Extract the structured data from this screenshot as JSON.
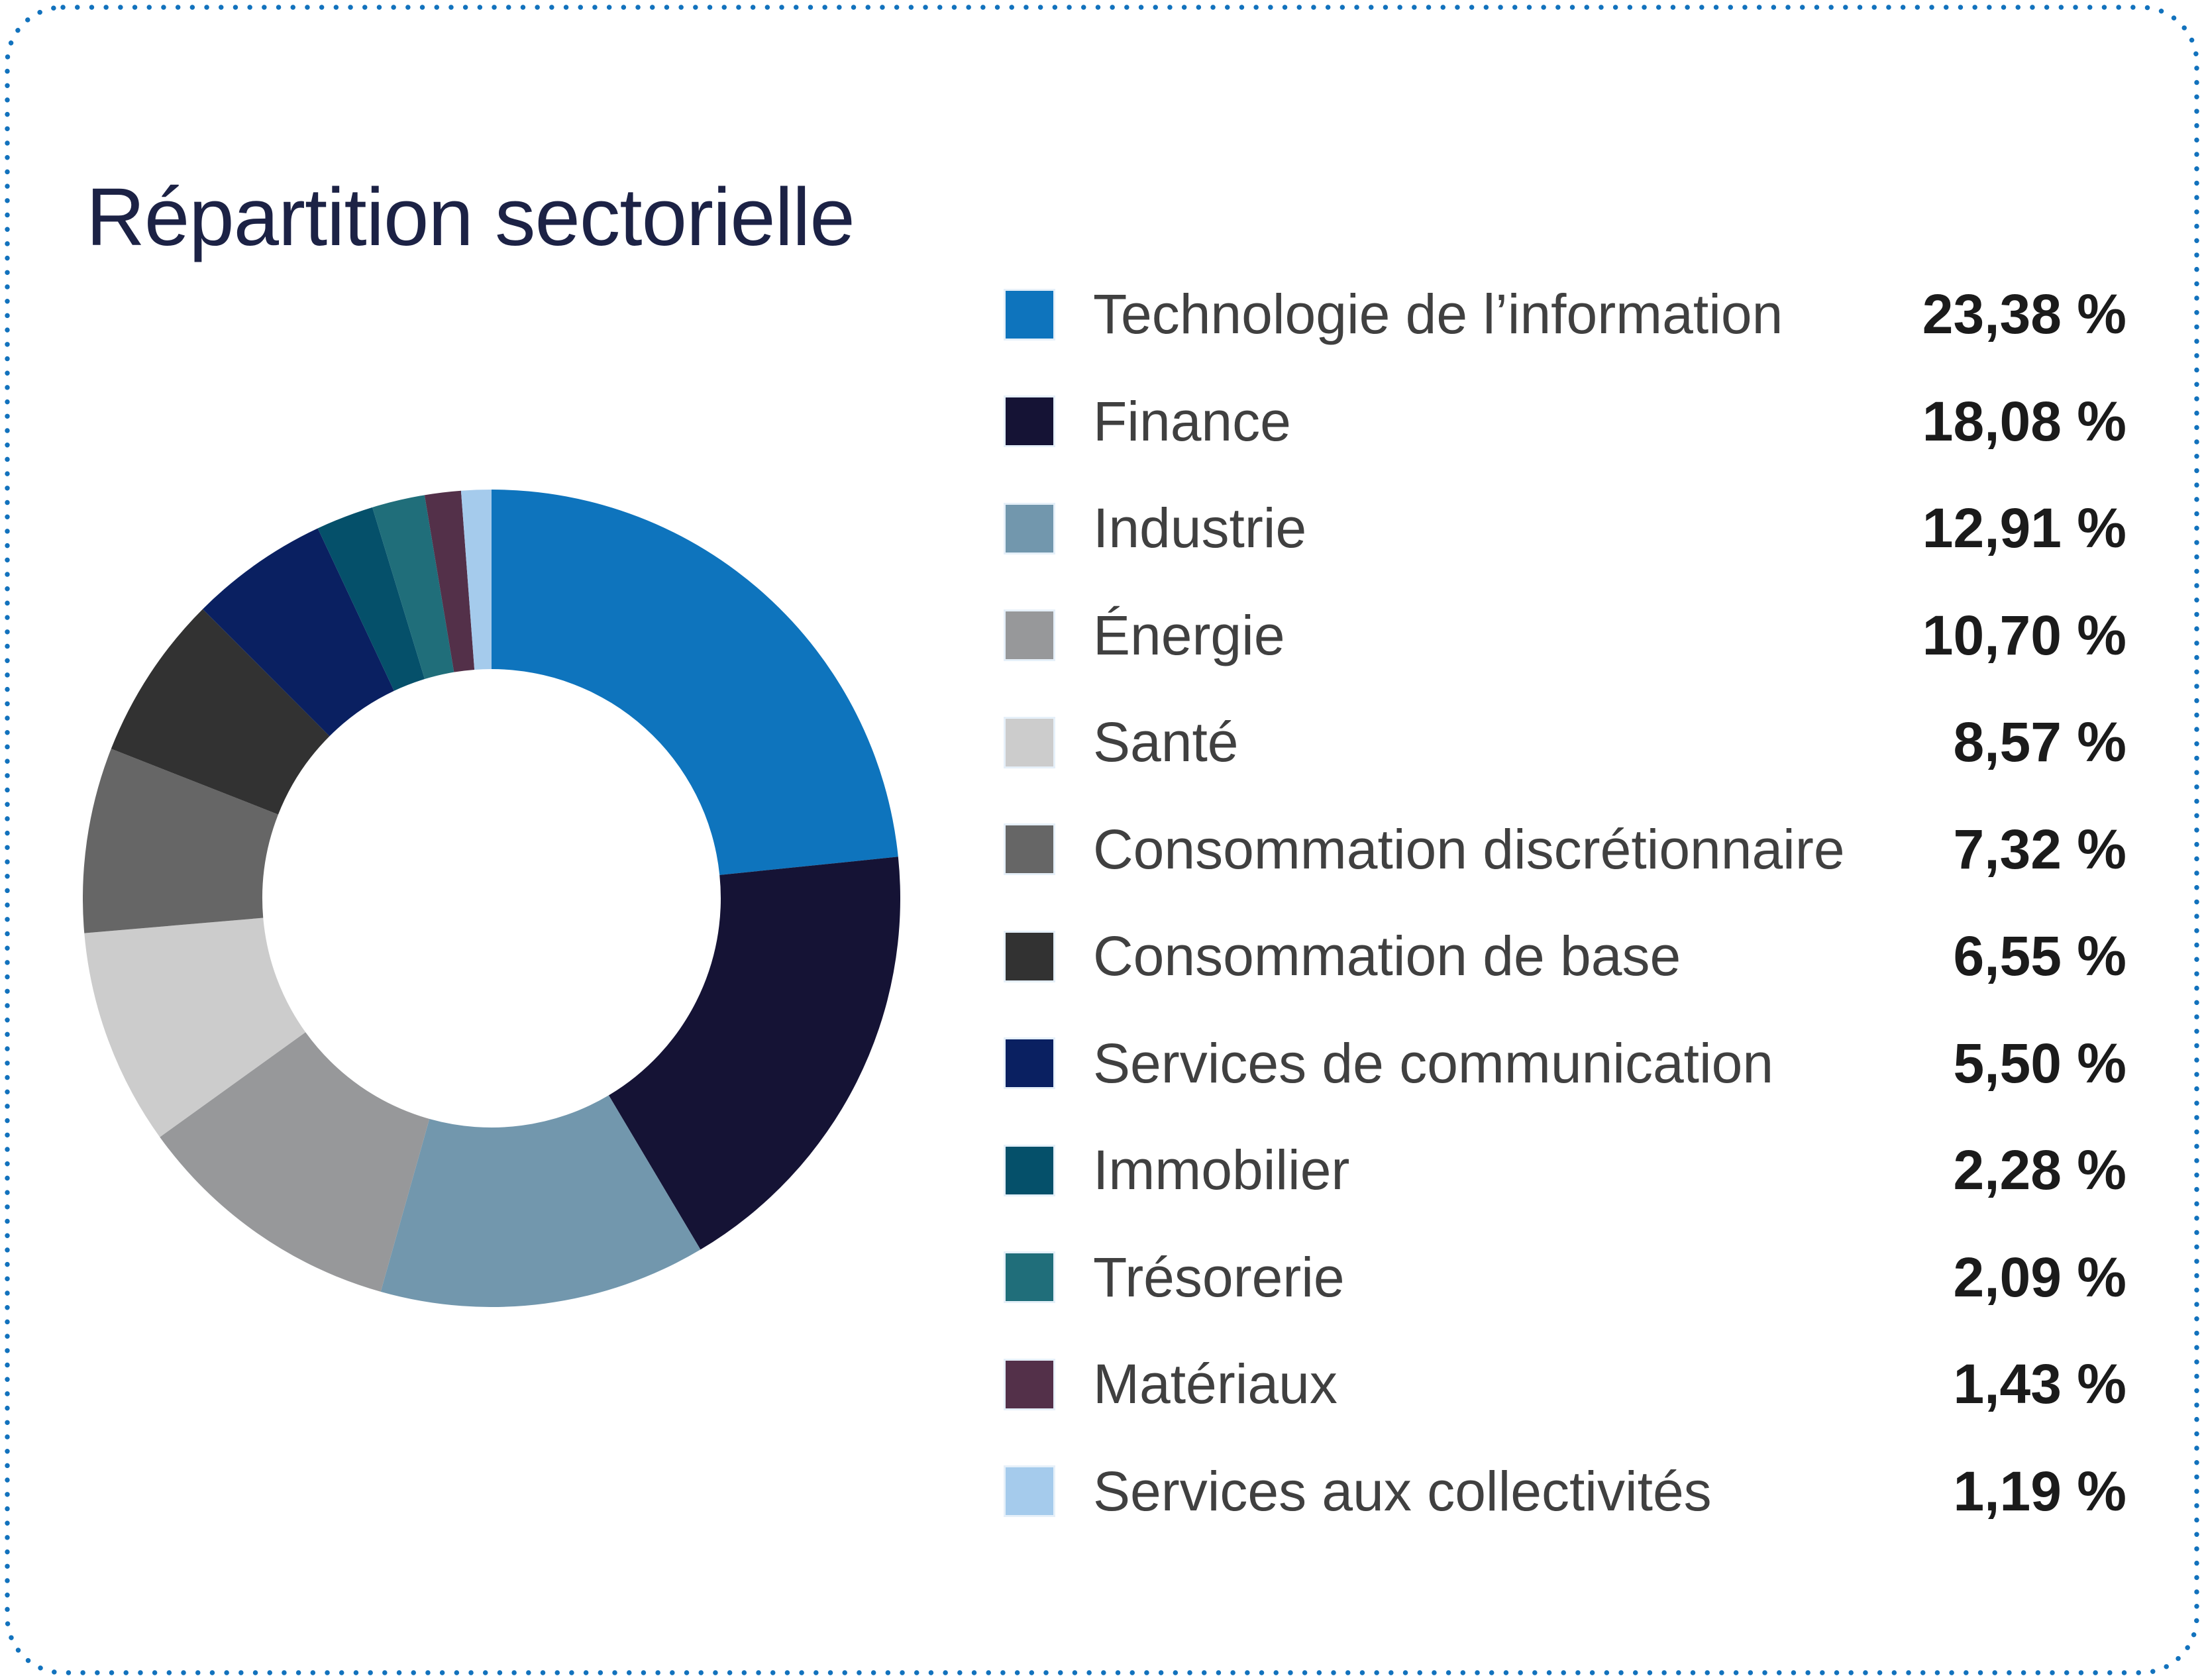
{
  "card": {
    "title": "Répartition sectorielle",
    "title_color": "#1c2245",
    "border_color": "#1272bd",
    "background_color": "#ffffff"
  },
  "chart_data": {
    "type": "pie",
    "donut": true,
    "title": "Répartition sectorielle",
    "unit": "%",
    "decimal_style": "comma",
    "legend_position": "right",
    "start_angle_deg": 0,
    "direction": "clockwise",
    "inner_radius_ratio": 0.56,
    "categories": [
      "Technologie de l’information",
      "Finance",
      "Industrie",
      "Énergie",
      "Santé",
      "Consommation discrétionnaire",
      "Consommation de base",
      "Services de communication",
      "Immobilier",
      "Trésorerie",
      "Matériaux",
      "Services aux collectivités"
    ],
    "values": [
      23.38,
      18.08,
      12.91,
      10.7,
      8.57,
      7.32,
      6.55,
      5.5,
      2.28,
      2.09,
      1.43,
      1.19
    ],
    "display_values": [
      "23,38 %",
      "18,08 %",
      "12,91 %",
      "10,70 %",
      "8,57 %",
      "7,32 %",
      "6,55 %",
      "5,50 %",
      "2,28 %",
      "2,09 %",
      "1,43 %",
      "1,19 %"
    ],
    "colors": [
      "#0E74BD",
      "#151335",
      "#7297AD",
      "#97989A",
      "#CCCCCC",
      "#666666",
      "#323232",
      "#0A2061",
      "#05506A",
      "#206E7A",
      "#533049",
      "#A5CBEC"
    ]
  }
}
